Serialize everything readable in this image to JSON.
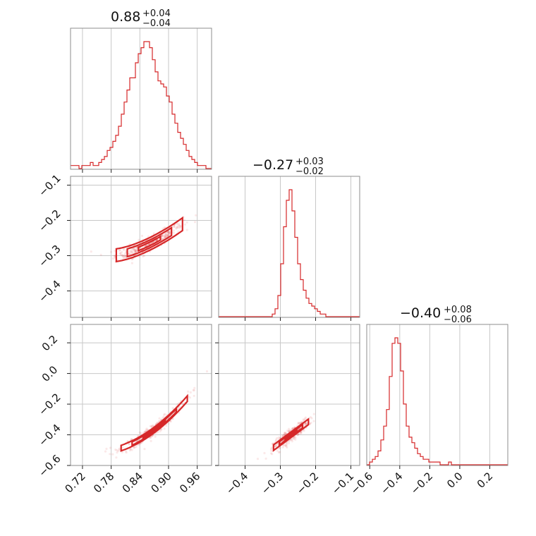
{
  "chart_data": {
    "type": "corner",
    "color": "#d62728",
    "grid": true,
    "params": [
      {
        "title": {
          "median": "0.88",
          "plus": "+0.04",
          "minus": "−0.04"
        },
        "range": [
          0.695,
          0.99
        ],
        "ticks": [
          0.72,
          0.78,
          0.84,
          0.9,
          0.96
        ],
        "ticklabels": [
          "0.72",
          "0.78",
          "0.84",
          "0.90",
          "0.96"
        ],
        "hist_edges": [
          0.695,
          0.99
        ],
        "hist_counts": [
          1,
          1,
          1,
          0,
          1,
          1,
          1,
          2,
          1,
          1,
          2,
          3,
          4,
          6,
          7,
          9,
          11,
          14,
          18,
          22,
          26,
          30,
          30,
          35,
          38,
          40,
          42,
          42,
          40,
          36,
          32,
          29,
          28,
          27,
          24,
          22,
          18,
          15,
          12,
          10,
          8,
          6,
          4,
          3,
          2,
          1,
          1,
          1,
          0,
          0
        ]
      },
      {
        "title": {
          "median": "−0.27",
          "plus": "+0.03",
          "minus": "−0.02"
        },
        "range": [
          -0.475,
          -0.075
        ],
        "ticks": [
          -0.4,
          -0.3,
          -0.2,
          -0.1
        ],
        "ticklabels": [
          "−0.4",
          "−0.3",
          "−0.2",
          "−0.1"
        ],
        "ylim": [
          -0.475,
          -0.075
        ],
        "yticks": [
          -0.1,
          -0.2,
          -0.3,
          -0.4
        ],
        "yticklabels": [
          "−0.1",
          "−0.2",
          "−0.3",
          "−0.4"
        ],
        "hist_edges": [
          -0.475,
          -0.075
        ],
        "hist_counts": [
          0,
          0,
          0,
          0,
          0,
          0,
          0,
          0,
          0,
          0,
          0,
          0,
          0,
          0,
          0,
          0,
          0,
          0,
          0,
          1,
          3,
          8,
          20,
          34,
          44,
          48,
          40,
          30,
          20,
          14,
          10,
          7,
          5,
          4,
          3,
          2,
          1,
          1,
          0,
          0,
          0,
          0,
          0,
          0,
          0,
          0,
          0,
          0,
          0,
          0
        ]
      },
      {
        "title": {
          "median": "−0.40",
          "plus": "+0.08",
          "minus": "−0.06"
        },
        "range": [
          -0.62,
          0.32
        ],
        "ticks": [
          -0.6,
          -0.4,
          -0.2,
          0.0,
          0.2
        ],
        "ticklabels": [
          "−0.6",
          "−0.4",
          "−0.2",
          "0.0",
          "0.2"
        ],
        "ylim": [
          -0.6,
          0.32
        ],
        "yticks": [
          0.2,
          0.0,
          -0.2,
          -0.4,
          -0.6
        ],
        "yticklabels": [
          "0.2",
          "0.0",
          "−0.2",
          "−0.4",
          "−0.6"
        ],
        "hist_edges": [
          -0.62,
          0.32
        ],
        "hist_counts": [
          0,
          1,
          2,
          3,
          5,
          9,
          14,
          20,
          32,
          44,
          46,
          44,
          34,
          22,
          14,
          10,
          8,
          6,
          4,
          3,
          2,
          2,
          1,
          1,
          1,
          1,
          0,
          0,
          0,
          1,
          0,
          0,
          0,
          0,
          0,
          0,
          0,
          0,
          0,
          0,
          0,
          0,
          0,
          0,
          0,
          0,
          0,
          0,
          0,
          0
        ]
      }
    ],
    "scatter_panels": [
      {
        "x_param": 0,
        "y_param": 1,
        "ellipse_center": [
          0.86,
          -0.275
        ],
        "relationship": "y increases with x (curved)"
      },
      {
        "x_param": 0,
        "y_param": 2,
        "ellipse_center": [
          0.87,
          -0.4
        ],
        "relationship": "y increases with x (curved)"
      },
      {
        "x_param": 1,
        "y_param": 2,
        "ellipse_center": [
          -0.27,
          -0.4
        ],
        "relationship": "y increases with x"
      }
    ]
  }
}
